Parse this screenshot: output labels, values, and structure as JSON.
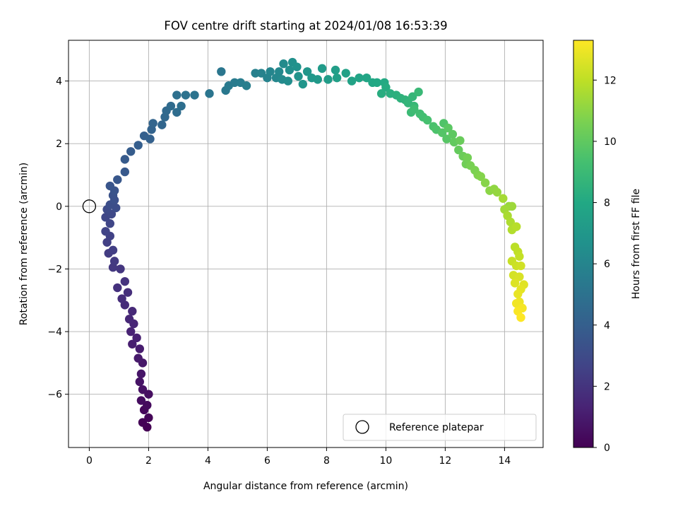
{
  "chart_data": {
    "type": "scatter",
    "title": "FOV centre drift starting at 2024/01/08 16:53:39",
    "xlabel": "Angular distance from reference (arcmin)",
    "ylabel": "Rotation from reference (arcmin)",
    "xlim": [
      -0.7,
      15.3
    ],
    "ylim": [
      -7.7,
      5.3
    ],
    "xticks": [
      0,
      2,
      4,
      6,
      8,
      10,
      12,
      14
    ],
    "yticks": [
      -6,
      -4,
      -2,
      0,
      2,
      4
    ],
    "xtick_labels": [
      "0",
      "2",
      "4",
      "6",
      "8",
      "10",
      "12",
      "14"
    ],
    "ytick_labels": [
      "−6",
      "−4",
      "−2",
      "0",
      "2",
      "4"
    ],
    "grid": true,
    "colormap": "viridis",
    "colorbar": {
      "label": "Hours from first FF file",
      "range": [
        0,
        13.3
      ],
      "ticks": [
        0,
        2,
        4,
        6,
        8,
        10,
        12
      ],
      "tick_labels": [
        "0",
        "2",
        "4",
        "6",
        "8",
        "10",
        "12"
      ]
    },
    "legend": {
      "position": "lower-right",
      "entries": [
        "Reference platepar"
      ]
    },
    "reference_point": {
      "x": 0.0,
      "y": 0.0
    },
    "series": [
      {
        "points": [
          [
            1.95,
            -7.05
          ],
          [
            1.8,
            -6.9
          ],
          [
            2.0,
            -6.75
          ],
          [
            1.85,
            -6.5
          ],
          [
            1.95,
            -6.35
          ],
          [
            1.75,
            -6.2
          ],
          [
            2.0,
            -6.0
          ],
          [
            1.8,
            -5.85
          ],
          [
            1.7,
            -5.6
          ],
          [
            1.75,
            -5.35
          ],
          [
            1.8,
            -5.0
          ],
          [
            1.65,
            -4.85
          ],
          [
            1.7,
            -4.55
          ],
          [
            1.45,
            -4.4
          ],
          [
            1.6,
            -4.2
          ],
          [
            1.4,
            -4.0
          ],
          [
            1.5,
            -3.75
          ],
          [
            1.35,
            -3.6
          ],
          [
            1.45,
            -3.35
          ],
          [
            1.2,
            -3.15
          ],
          [
            1.1,
            -2.95
          ],
          [
            1.3,
            -2.75
          ],
          [
            0.95,
            -2.6
          ],
          [
            1.2,
            -2.4
          ],
          [
            1.05,
            -2.0
          ],
          [
            0.8,
            -1.95
          ],
          [
            0.85,
            -1.75
          ],
          [
            0.65,
            -1.5
          ],
          [
            0.8,
            -1.4
          ],
          [
            0.6,
            -1.15
          ],
          [
            0.7,
            -0.95
          ],
          [
            0.55,
            -0.8
          ],
          [
            0.7,
            -0.55
          ],
          [
            0.55,
            -0.35
          ],
          [
            0.75,
            -0.25
          ],
          [
            0.6,
            -0.1
          ],
          [
            0.9,
            -0.05
          ],
          [
            0.7,
            0.05
          ],
          [
            0.85,
            0.2
          ],
          [
            0.8,
            0.35
          ],
          [
            0.85,
            0.5
          ],
          [
            0.7,
            0.65
          ],
          [
            0.95,
            0.85
          ],
          [
            1.2,
            1.1
          ],
          [
            1.2,
            1.5
          ],
          [
            1.4,
            1.75
          ],
          [
            1.65,
            1.95
          ],
          [
            1.85,
            2.25
          ],
          [
            2.05,
            2.15
          ],
          [
            2.1,
            2.45
          ],
          [
            2.15,
            2.65
          ],
          [
            2.45,
            2.6
          ],
          [
            2.55,
            2.85
          ],
          [
            2.6,
            3.05
          ],
          [
            2.75,
            3.2
          ],
          [
            2.95,
            3.0
          ],
          [
            3.1,
            3.2
          ],
          [
            2.95,
            3.55
          ],
          [
            3.25,
            3.55
          ],
          [
            3.55,
            3.55
          ],
          [
            4.05,
            3.6
          ],
          [
            4.45,
            4.3
          ],
          [
            4.6,
            3.7
          ],
          [
            4.7,
            3.85
          ],
          [
            4.9,
            3.95
          ],
          [
            5.1,
            3.95
          ],
          [
            5.3,
            3.85
          ],
          [
            5.6,
            4.25
          ],
          [
            5.8,
            4.25
          ],
          [
            6.0,
            4.1
          ],
          [
            6.1,
            4.3
          ],
          [
            6.3,
            4.1
          ],
          [
            6.4,
            4.3
          ],
          [
            6.5,
            4.05
          ],
          [
            6.55,
            4.55
          ],
          [
            6.7,
            4.0
          ],
          [
            6.75,
            4.35
          ],
          [
            6.85,
            4.6
          ],
          [
            7.0,
            4.45
          ],
          [
            7.05,
            4.15
          ],
          [
            7.2,
            3.9
          ],
          [
            7.35,
            4.3
          ],
          [
            7.5,
            4.1
          ],
          [
            7.7,
            4.05
          ],
          [
            7.85,
            4.4
          ],
          [
            8.05,
            4.05
          ],
          [
            8.3,
            4.35
          ],
          [
            8.35,
            4.1
          ],
          [
            8.65,
            4.25
          ],
          [
            8.85,
            4.0
          ],
          [
            9.1,
            4.1
          ],
          [
            9.35,
            4.1
          ],
          [
            9.55,
            3.95
          ],
          [
            9.7,
            3.95
          ],
          [
            9.95,
            3.95
          ],
          [
            10.0,
            3.8
          ],
          [
            9.85,
            3.6
          ],
          [
            10.15,
            3.6
          ],
          [
            10.35,
            3.55
          ],
          [
            10.5,
            3.45
          ],
          [
            10.65,
            3.4
          ],
          [
            10.75,
            3.3
          ],
          [
            10.9,
            3.5
          ],
          [
            10.95,
            3.2
          ],
          [
            11.1,
            3.65
          ],
          [
            10.85,
            3.0
          ],
          [
            10.95,
            3.1
          ],
          [
            11.15,
            2.95
          ],
          [
            11.25,
            2.85
          ],
          [
            11.4,
            2.75
          ],
          [
            11.6,
            2.55
          ],
          [
            11.7,
            2.45
          ],
          [
            11.95,
            2.65
          ],
          [
            11.9,
            2.35
          ],
          [
            12.05,
            2.15
          ],
          [
            12.1,
            2.5
          ],
          [
            12.25,
            2.3
          ],
          [
            12.3,
            2.05
          ],
          [
            12.45,
            1.8
          ],
          [
            12.5,
            2.1
          ],
          [
            12.6,
            1.6
          ],
          [
            12.7,
            1.35
          ],
          [
            12.75,
            1.55
          ],
          [
            12.85,
            1.3
          ],
          [
            13.0,
            1.15
          ],
          [
            13.1,
            1.0
          ],
          [
            13.2,
            0.95
          ],
          [
            13.35,
            0.75
          ],
          [
            13.5,
            0.5
          ],
          [
            13.65,
            0.55
          ],
          [
            13.75,
            0.45
          ],
          [
            14.15,
            0.0
          ],
          [
            14.25,
            0.0
          ],
          [
            14.0,
            -0.1
          ],
          [
            13.95,
            0.25
          ],
          [
            14.1,
            -0.3
          ],
          [
            14.2,
            -0.5
          ],
          [
            14.25,
            -0.75
          ],
          [
            14.4,
            -0.65
          ],
          [
            14.35,
            -1.3
          ],
          [
            14.45,
            -1.45
          ],
          [
            14.5,
            -1.6
          ],
          [
            14.25,
            -1.75
          ],
          [
            14.4,
            -1.9
          ],
          [
            14.55,
            -1.9
          ],
          [
            14.3,
            -2.2
          ],
          [
            14.5,
            -2.25
          ],
          [
            14.35,
            -2.45
          ],
          [
            14.65,
            -2.5
          ],
          [
            14.55,
            -2.65
          ],
          [
            14.45,
            -2.8
          ],
          [
            14.5,
            -3.05
          ],
          [
            14.4,
            -3.1
          ],
          [
            14.6,
            -3.25
          ],
          [
            14.45,
            -3.35
          ],
          [
            14.55,
            -3.55
          ]
        ]
      }
    ]
  }
}
